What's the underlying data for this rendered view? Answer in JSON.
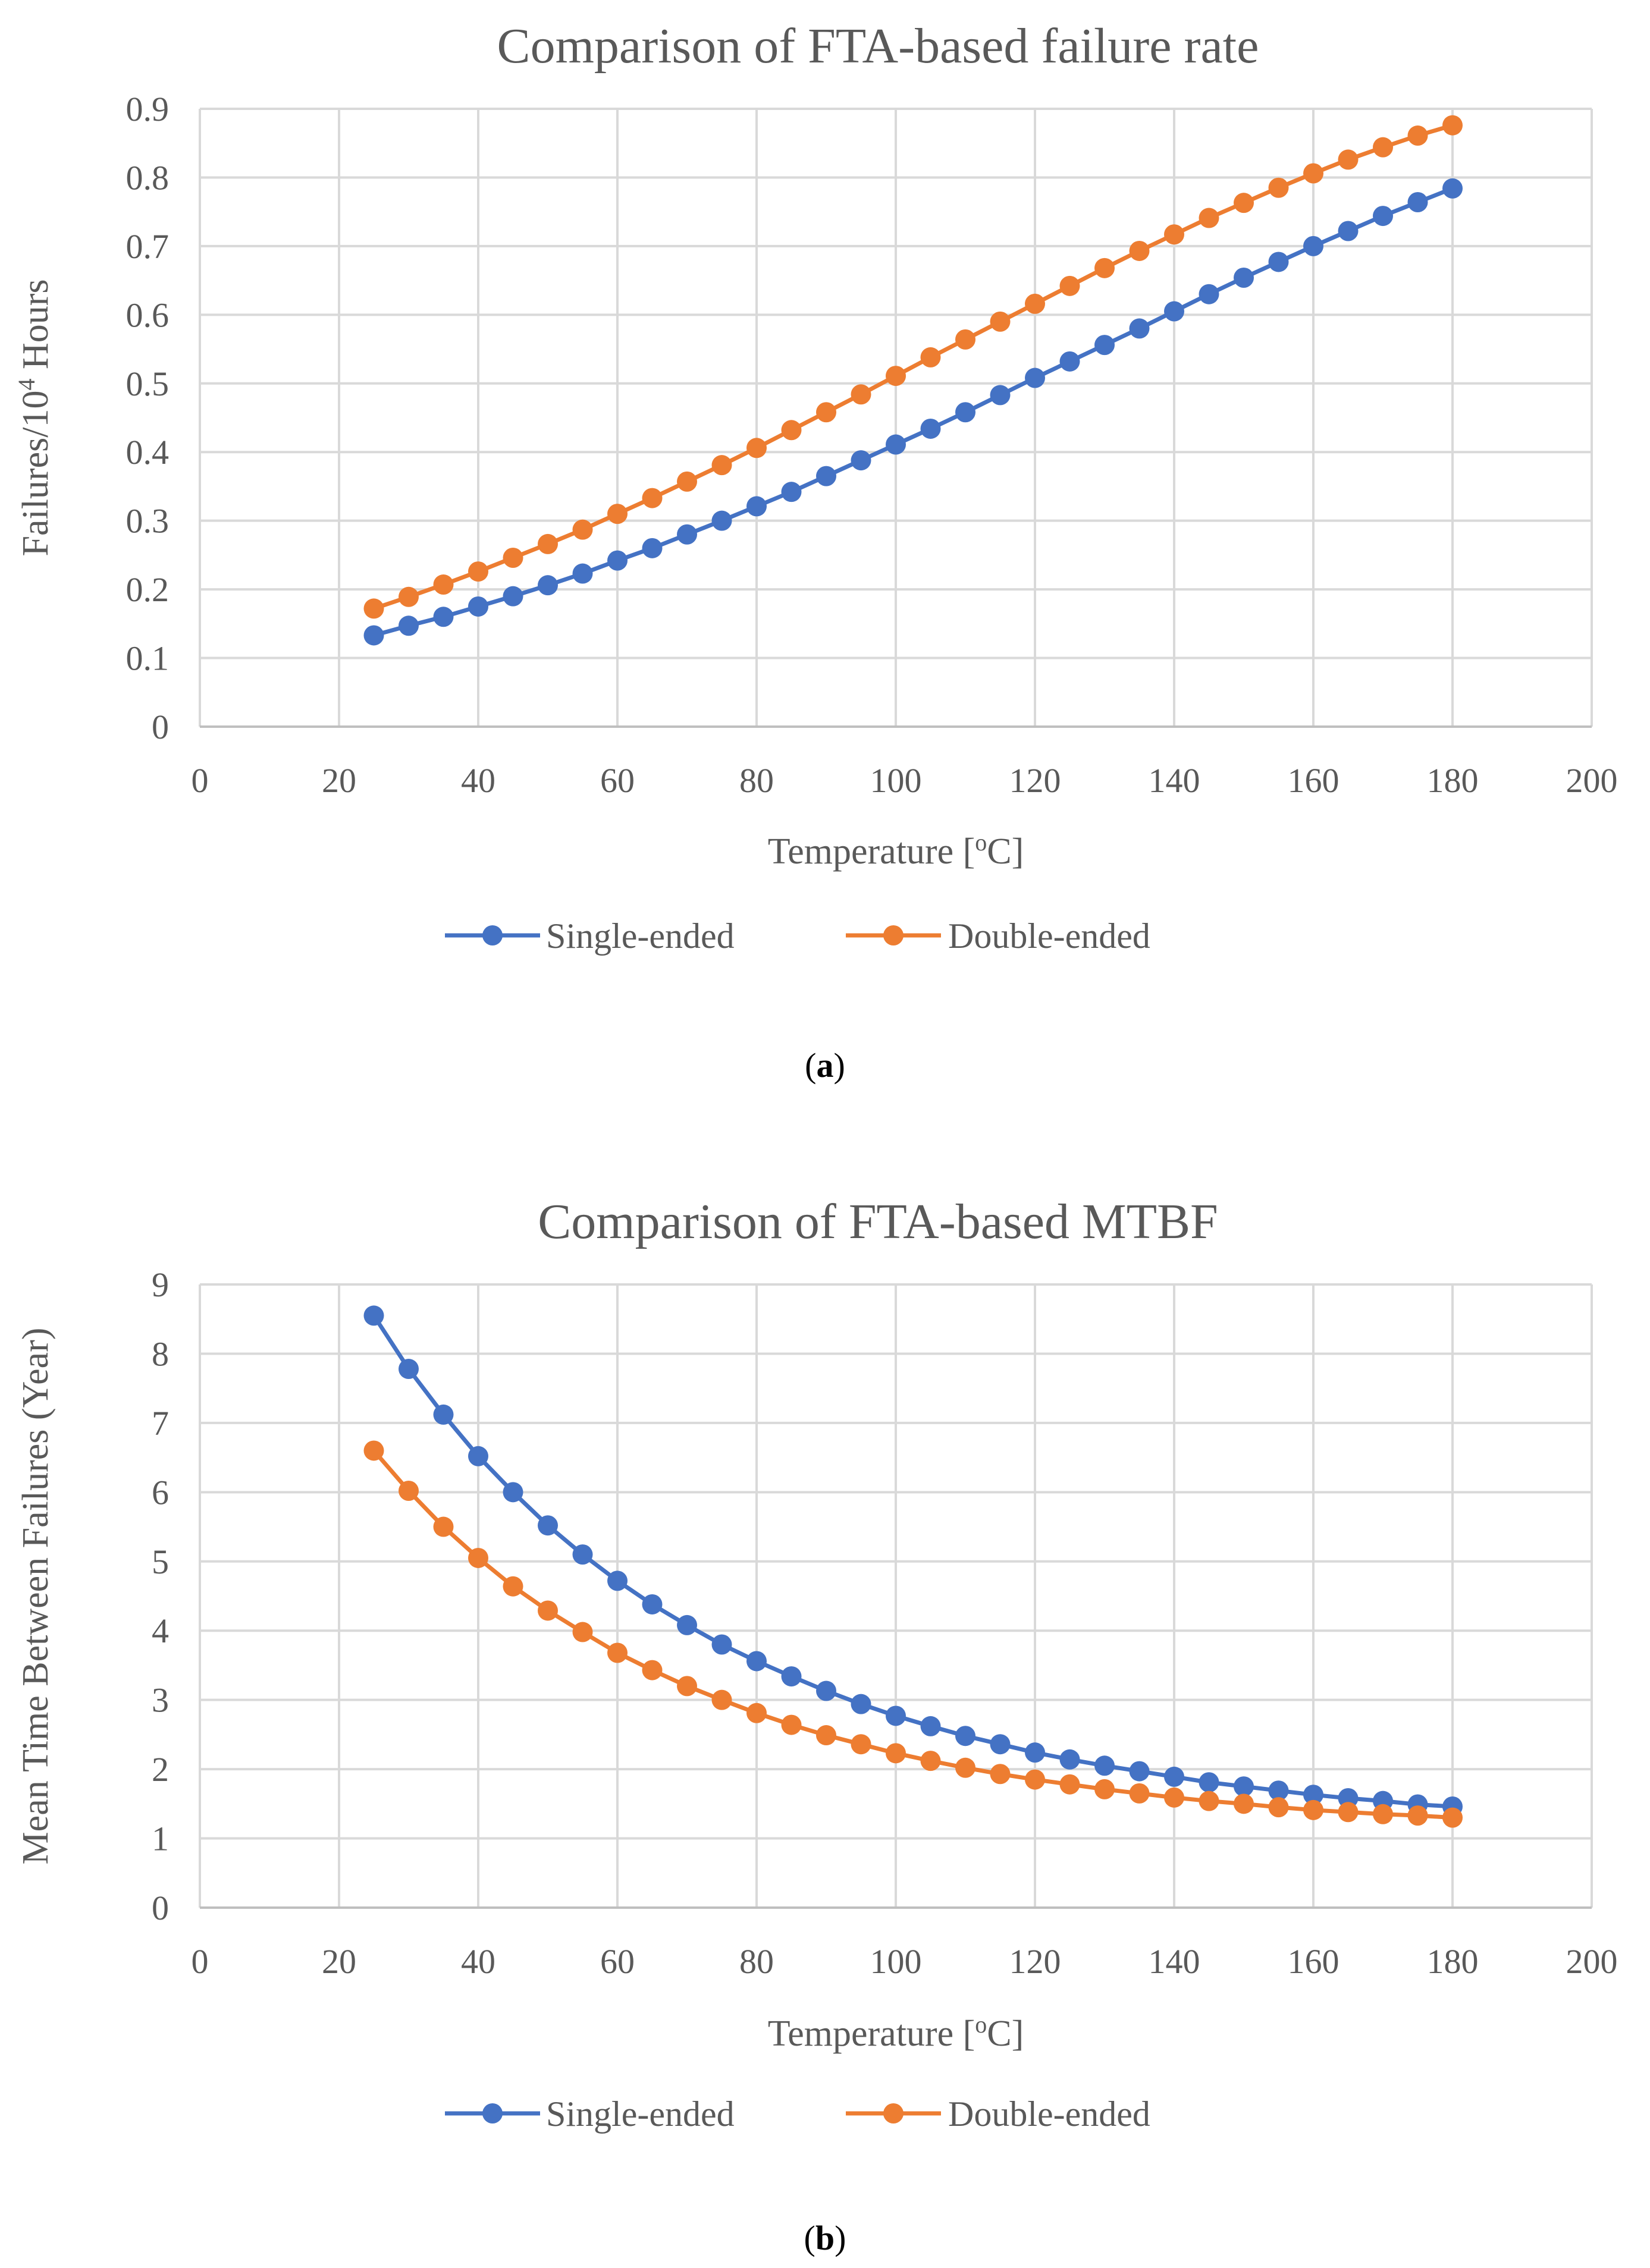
{
  "chart_data": [
    {
      "type": "line",
      "panel_label": "a",
      "title": "Comparison of FTA-based failure rate",
      "ylabel": "Failures/10",
      "ylabel_superscript": "4",
      "ylabel_suffix": " Hours",
      "xlabel_prefix": "Temperature [",
      "xlabel_superscript": "o",
      "xlabel_suffix": "C]",
      "xlim": [
        0,
        200
      ],
      "ylim": [
        0,
        0.9
      ],
      "xticks": [
        0,
        20,
        40,
        60,
        80,
        100,
        120,
        140,
        160,
        180,
        200
      ],
      "yticks": [
        0,
        0.1,
        0.2,
        0.3,
        0.4,
        0.5,
        0.6,
        0.7,
        0.8,
        0.9
      ],
      "grid": true,
      "legend_position": "bottom",
      "x": [
        25,
        30,
        35,
        40,
        45,
        50,
        55,
        60,
        65,
        70,
        75,
        80,
        85,
        90,
        95,
        100,
        105,
        110,
        115,
        120,
        125,
        130,
        135,
        140,
        145,
        150,
        155,
        160,
        165,
        170,
        175,
        180
      ],
      "series": [
        {
          "name": "Single-ended",
          "color": "#4472C4",
          "values": [
            0.133,
            0.147,
            0.16,
            0.175,
            0.19,
            0.206,
            0.223,
            0.242,
            0.26,
            0.28,
            0.3,
            0.321,
            0.342,
            0.365,
            0.388,
            0.411,
            0.434,
            0.458,
            0.483,
            0.508,
            0.532,
            0.556,
            0.58,
            0.605,
            0.63,
            0.654,
            0.677,
            0.7,
            0.722,
            0.744,
            0.764,
            0.784
          ]
        },
        {
          "name": "Double-ended",
          "color": "#ED7D31",
          "values": [
            0.172,
            0.189,
            0.207,
            0.226,
            0.246,
            0.266,
            0.287,
            0.31,
            0.333,
            0.357,
            0.381,
            0.406,
            0.432,
            0.458,
            0.484,
            0.511,
            0.538,
            0.564,
            0.59,
            0.616,
            0.642,
            0.668,
            0.693,
            0.717,
            0.741,
            0.763,
            0.785,
            0.806,
            0.826,
            0.844,
            0.861,
            0.876
          ]
        }
      ]
    },
    {
      "type": "line",
      "panel_label": "b",
      "title": "Comparison of FTA-based MTBF",
      "ylabel": "Mean Time Between Failures (Year)",
      "ylabel_superscript": "",
      "ylabel_suffix": "",
      "xlabel_prefix": "Temperature [",
      "xlabel_superscript": "o",
      "xlabel_suffix": "C]",
      "xlim": [
        0,
        200
      ],
      "ylim": [
        0,
        9
      ],
      "xticks": [
        0,
        20,
        40,
        60,
        80,
        100,
        120,
        140,
        160,
        180,
        200
      ],
      "yticks": [
        0,
        1,
        2,
        3,
        4,
        5,
        6,
        7,
        8,
        9
      ],
      "grid": true,
      "legend_position": "bottom",
      "x": [
        25,
        30,
        35,
        40,
        45,
        50,
        55,
        60,
        65,
        70,
        75,
        80,
        85,
        90,
        95,
        100,
        105,
        110,
        115,
        120,
        125,
        130,
        135,
        140,
        145,
        150,
        155,
        160,
        165,
        170,
        175,
        180
      ],
      "series": [
        {
          "name": "Single-ended",
          "color": "#4472C4",
          "values": [
            8.55,
            7.78,
            7.12,
            6.52,
            6.0,
            5.52,
            5.1,
            4.72,
            4.38,
            4.08,
            3.8,
            3.56,
            3.34,
            3.13,
            2.94,
            2.77,
            2.62,
            2.48,
            2.36,
            2.24,
            2.14,
            2.05,
            1.97,
            1.89,
            1.81,
            1.75,
            1.69,
            1.63,
            1.58,
            1.54,
            1.49,
            1.46
          ]
        },
        {
          "name": "Double-ended",
          "color": "#ED7D31",
          "values": [
            6.6,
            6.02,
            5.5,
            5.05,
            4.64,
            4.29,
            3.98,
            3.68,
            3.43,
            3.2,
            3.0,
            2.81,
            2.64,
            2.49,
            2.36,
            2.23,
            2.12,
            2.02,
            1.93,
            1.85,
            1.78,
            1.71,
            1.65,
            1.59,
            1.54,
            1.5,
            1.45,
            1.41,
            1.38,
            1.35,
            1.33,
            1.3
          ]
        }
      ]
    }
  ]
}
